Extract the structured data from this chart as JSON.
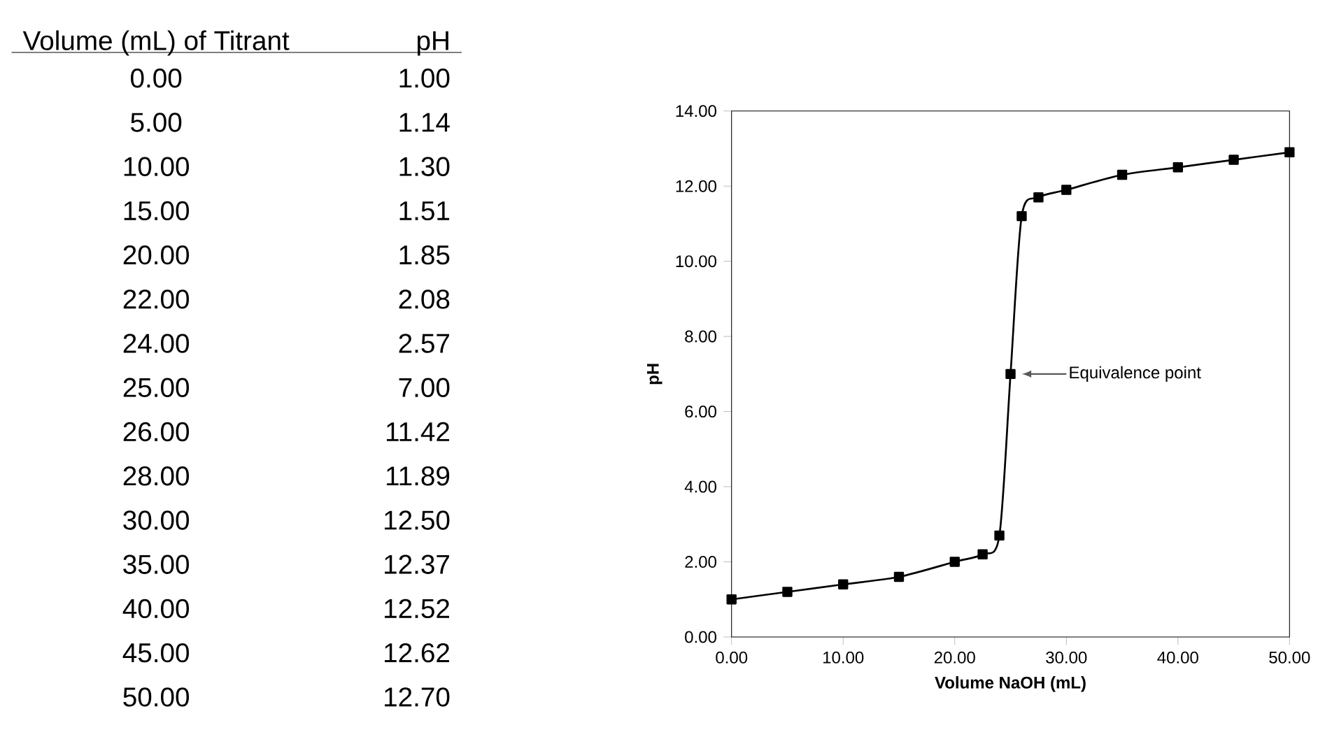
{
  "chart_data": [
    {
      "type": "other",
      "annotations": [
        "Volume (mL) of Titrant",
        "pH",
        "0.00",
        "1.00",
        "5.00",
        "1.14",
        "10.00",
        "1.30",
        "15.00",
        "1.51",
        "20.00",
        "1.85",
        "22.00",
        "2.08",
        "24.00",
        "2.57",
        "25.00",
        "7.00",
        "26.00",
        "11.42",
        "28.00",
        "11.89",
        "30.00",
        "12.50",
        "35.00",
        "12.37",
        "40.00",
        "12.52",
        "45.00",
        "12.62",
        "50.00",
        "12.70"
      ]
    },
    {
      "type": "line",
      "xlabel": "Volume NaOH (mL)",
      "ylabel": "pH",
      "x": [
        0,
        5,
        10,
        15,
        20,
        22.5,
        24,
        25,
        26,
        27.5,
        30,
        35,
        40,
        45,
        50
      ],
      "series": [
        {
          "color": "#000000",
          "values": [
            1.0,
            1.2,
            1.4,
            1.6,
            2.0,
            2.2,
            2.7,
            7.0,
            11.2,
            11.7,
            11.9,
            12.3,
            12.5,
            12.7,
            12.9
          ]
        }
      ],
      "marker": "square",
      "line_style": "solid",
      "xlim": [
        0,
        50
      ],
      "ylim": [
        0,
        14
      ],
      "xticks": [
        {
          "value": 0,
          "label": "0.00"
        },
        {
          "value": 10,
          "label": "10.00"
        },
        {
          "value": 20,
          "label": "20.00"
        },
        {
          "value": 30,
          "label": "30.00"
        },
        {
          "value": 40,
          "label": "40.00"
        },
        {
          "value": 50,
          "label": "50.00"
        }
      ],
      "yticks": [
        {
          "value": 0,
          "label": "0.00"
        },
        {
          "value": 2,
          "label": "2.00"
        },
        {
          "value": 4,
          "label": "4.00"
        },
        {
          "value": 6,
          "label": "6.00"
        },
        {
          "value": 8,
          "label": "8.00"
        },
        {
          "value": 10,
          "label": "10.00"
        },
        {
          "value": 12,
          "label": "12.00"
        },
        {
          "value": 14,
          "label": "14.00"
        }
      ],
      "annotations": [
        "Equivalence point"
      ]
    }
  ]
}
